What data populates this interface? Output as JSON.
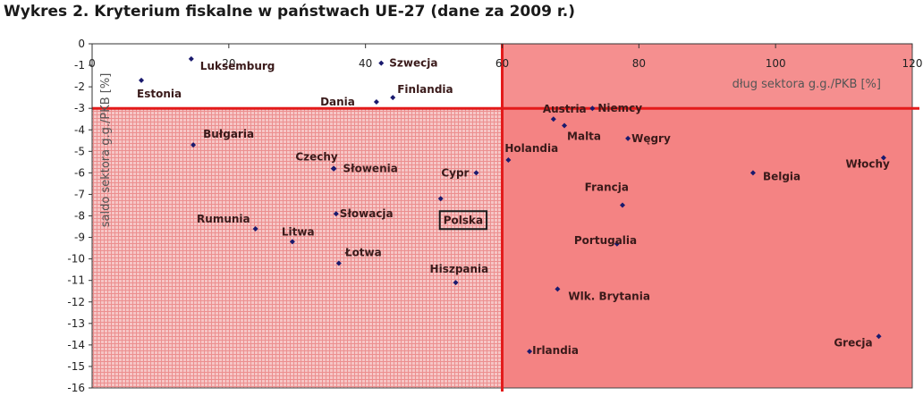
{
  "title": "Wykres 2. Kryterium fiskalne w państwach UE-27 (dane za 2009 r.)",
  "chart_data": {
    "type": "scatter",
    "title": "Wykres 2. Kryterium fiskalne w państwach UE-27 (dane za 2009 r.)",
    "xlabel": "dług sektora g.g./PKB [%]",
    "ylabel": "saldo sektora g.g./PKB [%]",
    "xlim": [
      0,
      120
    ],
    "ylim": [
      -16,
      0
    ],
    "x_ticks": [
      "0",
      "20",
      "40",
      "60",
      "80",
      "100",
      "120"
    ],
    "y_ticks": [
      "0",
      "-1",
      "-2",
      "-3",
      "-4",
      "-5",
      "-6",
      "-7",
      "-8",
      "-9",
      "-10",
      "-11",
      "-12",
      "-13",
      "-14",
      "-15",
      "-16"
    ],
    "grid": false,
    "thresholds": {
      "debt": 60,
      "deficit": -3
    },
    "colors": {
      "marker": "#1a1a6e",
      "threshold": "#e31b1b",
      "zone": "#ec2020"
    },
    "highlighted": "Polska",
    "points": [
      {
        "name": "Luksemburg",
        "x": 14.5,
        "y": -0.7
      },
      {
        "name": "Estonia",
        "x": 7.2,
        "y": -1.7
      },
      {
        "name": "Szwecja",
        "x": 42.3,
        "y": -0.9
      },
      {
        "name": "Finlandia",
        "x": 44.0,
        "y": -2.5
      },
      {
        "name": "Dania",
        "x": 41.6,
        "y": -2.7
      },
      {
        "name": "Bułgaria",
        "x": 14.8,
        "y": -4.7
      },
      {
        "name": "Czechy",
        "x": 35.3,
        "y": -5.8
      },
      {
        "name": "Słowenia",
        "x": 35.4,
        "y": -5.8
      },
      {
        "name": "Cypr",
        "x": 56.2,
        "y": -6.0
      },
      {
        "name": "Polska",
        "x": 51.0,
        "y": -7.2
      },
      {
        "name": "Rumunia",
        "x": 23.9,
        "y": -8.6
      },
      {
        "name": "Słowacja",
        "x": 35.7,
        "y": -7.9
      },
      {
        "name": "Litwa",
        "x": 29.3,
        "y": -9.2
      },
      {
        "name": "Łotwa",
        "x": 36.1,
        "y": -10.2
      },
      {
        "name": "Hiszpania",
        "x": 53.2,
        "y": -11.1
      },
      {
        "name": "Austria",
        "x": 67.5,
        "y": -3.5
      },
      {
        "name": "Niemcy",
        "x": 73.2,
        "y": -3.0
      },
      {
        "name": "Malta",
        "x": 69.1,
        "y": -3.8
      },
      {
        "name": "Węgry",
        "x": 78.4,
        "y": -4.4
      },
      {
        "name": "Holandia",
        "x": 60.9,
        "y": -5.4
      },
      {
        "name": "Belgia",
        "x": 96.7,
        "y": -6.0
      },
      {
        "name": "Włochy",
        "x": 115.8,
        "y": -5.3
      },
      {
        "name": "Francja",
        "x": 77.6,
        "y": -7.5
      },
      {
        "name": "Portugalia",
        "x": 76.8,
        "y": -9.3
      },
      {
        "name": "Wlk. Brytania",
        "x": 68.1,
        "y": -11.4
      },
      {
        "name": "Irlandia",
        "x": 64.0,
        "y": -14.3
      },
      {
        "name": "Grecja",
        "x": 115.1,
        "y": -13.6
      }
    ]
  }
}
